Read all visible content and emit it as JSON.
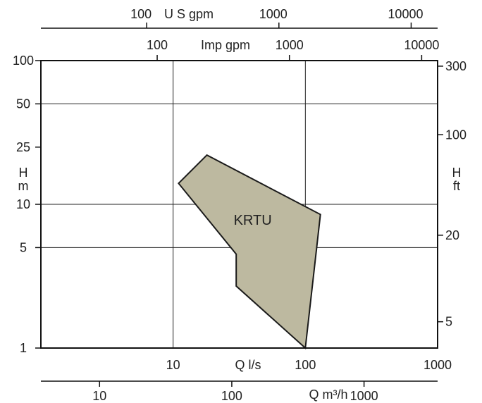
{
  "chart_data": {
    "type": "area",
    "title": "",
    "grid": true,
    "region": {
      "name": "KRTU",
      "color": "#bdb9a0",
      "outline_color": "#1a1a1a",
      "q_ls": [
        11,
        18,
        130,
        100,
        30,
        30,
        11
      ],
      "h_m": [
        14,
        22,
        8.5,
        1,
        2.7,
        4.5,
        14
      ]
    },
    "axes": {
      "bottom": {
        "label": "Q l/s",
        "scale": "log",
        "range": [
          1,
          1000
        ],
        "ticks": [
          "10",
          "100",
          "1000"
        ]
      },
      "left": {
        "labels": [
          "H",
          "m"
        ],
        "scale": "log",
        "range": [
          1,
          100
        ],
        "ticks": [
          "1",
          "5",
          "10",
          "25",
          "50",
          "100"
        ]
      },
      "right": {
        "labels": [
          "H",
          "ft"
        ],
        "scale": "log",
        "ticks": [
          "5",
          "20",
          "100",
          "300"
        ]
      },
      "top_usgpm": {
        "label": "U S gpm",
        "scale": "log",
        "ticks": [
          "100",
          "1000",
          "10000"
        ]
      },
      "top_impgpm": {
        "label": "Imp gpm",
        "scale": "log",
        "ticks": [
          "100",
          "1000",
          "10000"
        ]
      },
      "bottom_m3h": {
        "label": "Q m³/h",
        "scale": "log",
        "ticks": [
          "10",
          "100",
          "1000"
        ]
      }
    }
  }
}
